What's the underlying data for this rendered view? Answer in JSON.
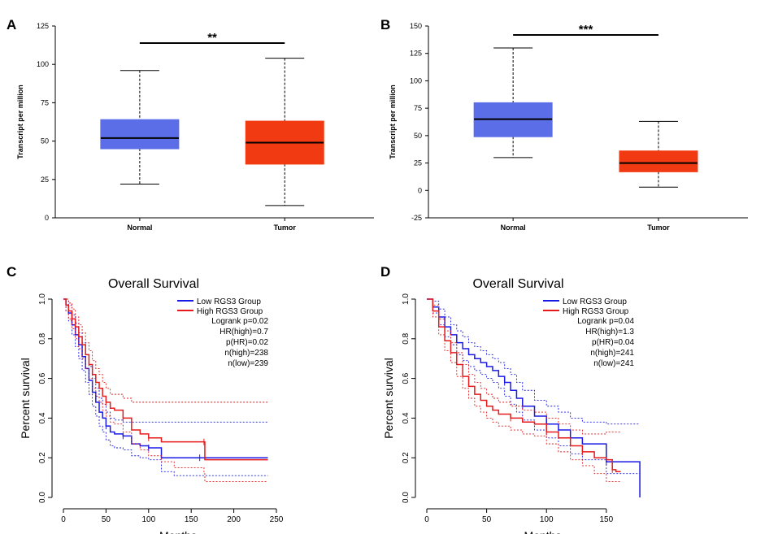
{
  "colors": {
    "normal_box": "#5b6ee8",
    "tumor_box": "#f23a12",
    "low_group": "#1a1ae6",
    "high_group": "#e61a1a"
  },
  "panels": {
    "A": "A",
    "B": "B",
    "C": "C",
    "D": "D"
  },
  "chart_data": [
    {
      "panel": "A",
      "type": "box",
      "title": "",
      "xlabel": "",
      "ylabel": "Transcript per million",
      "ylim": [
        0,
        125
      ],
      "yticks": [
        0,
        25,
        50,
        75,
        100,
        125
      ],
      "categories": [
        "Normal",
        "Tumor"
      ],
      "boxes": [
        {
          "name": "Normal",
          "min": 22,
          "q1": 45,
          "median": 52,
          "q3": 64,
          "max": 96
        },
        {
          "name": "Tumor",
          "min": 8,
          "q1": 35,
          "median": 49,
          "q3": 63,
          "max": 104
        }
      ],
      "significance": "**"
    },
    {
      "panel": "B",
      "type": "box",
      "title": "",
      "xlabel": "",
      "ylabel": "Transcript per million",
      "ylim": [
        -25,
        150
      ],
      "yticks": [
        -25,
        0,
        25,
        50,
        75,
        100,
        125,
        150
      ],
      "categories": [
        "Normal",
        "Tumor"
      ],
      "boxes": [
        {
          "name": "Normal",
          "min": 30,
          "q1": 49,
          "median": 65,
          "q3": 80,
          "max": 130
        },
        {
          "name": "Tumor",
          "min": 3,
          "q1": 17,
          "median": 25,
          "q3": 36,
          "max": 63
        }
      ],
      "significance": "***"
    },
    {
      "panel": "C",
      "type": "line",
      "title": "Overall Survival",
      "xlabel": "Months",
      "ylabel": "Percent survival",
      "xlim": [
        0,
        250
      ],
      "ylim": [
        0,
        1.0
      ],
      "xticks": [
        0,
        50,
        100,
        150,
        200,
        250
      ],
      "yticks": [
        0.0,
        0.2,
        0.4,
        0.6,
        0.8,
        1.0
      ],
      "legend": [
        "Low RGS3 Group",
        "High RGS3 Group"
      ],
      "stats": [
        "Logrank p=0.02",
        "HR(high)=0.7",
        "p(HR)=0.02",
        "n(high)=238",
        "n(low)=239"
      ],
      "series": [
        {
          "name": "Low RGS3 Group",
          "x": [
            0,
            3,
            6,
            10,
            14,
            18,
            22,
            26,
            30,
            34,
            38,
            42,
            46,
            50,
            55,
            60,
            70,
            80,
            90,
            100,
            115,
            130,
            160,
            200,
            240
          ],
          "y": [
            1.0,
            0.97,
            0.93,
            0.87,
            0.82,
            0.77,
            0.71,
            0.65,
            0.59,
            0.53,
            0.48,
            0.43,
            0.4,
            0.36,
            0.33,
            0.32,
            0.31,
            0.27,
            0.26,
            0.25,
            0.2,
            0.2,
            0.2,
            0.2,
            0.2
          ],
          "upper": [
            1.0,
            1.0,
            0.97,
            0.92,
            0.88,
            0.83,
            0.78,
            0.72,
            0.66,
            0.6,
            0.55,
            0.5,
            0.47,
            0.43,
            0.4,
            0.39,
            0.38,
            0.38,
            0.38,
            0.38,
            0.38,
            0.38,
            0.38,
            0.38,
            0.38
          ],
          "lower": [
            1.0,
            0.94,
            0.89,
            0.82,
            0.76,
            0.7,
            0.64,
            0.58,
            0.52,
            0.46,
            0.41,
            0.36,
            0.33,
            0.29,
            0.26,
            0.25,
            0.24,
            0.21,
            0.2,
            0.19,
            0.13,
            0.11,
            0.11,
            0.11,
            0.11
          ]
        },
        {
          "name": "High RGS3 Group",
          "x": [
            0,
            3,
            6,
            10,
            14,
            18,
            22,
            26,
            30,
            34,
            38,
            42,
            46,
            50,
            55,
            60,
            70,
            80,
            90,
            100,
            115,
            130,
            165,
            166,
            240
          ],
          "y": [
            1.0,
            0.97,
            0.94,
            0.9,
            0.86,
            0.81,
            0.77,
            0.72,
            0.67,
            0.62,
            0.58,
            0.55,
            0.51,
            0.48,
            0.45,
            0.44,
            0.4,
            0.34,
            0.32,
            0.3,
            0.28,
            0.28,
            0.28,
            0.19,
            0.19
          ],
          "upper": [
            1.0,
            1.0,
            0.98,
            0.95,
            0.91,
            0.87,
            0.83,
            0.78,
            0.74,
            0.69,
            0.65,
            0.62,
            0.58,
            0.55,
            0.52,
            0.52,
            0.5,
            0.48,
            0.48,
            0.48,
            0.48,
            0.48,
            0.48,
            0.48,
            0.48
          ],
          "lower": [
            1.0,
            0.94,
            0.9,
            0.85,
            0.8,
            0.75,
            0.7,
            0.65,
            0.6,
            0.55,
            0.51,
            0.48,
            0.44,
            0.41,
            0.38,
            0.37,
            0.33,
            0.27,
            0.24,
            0.21,
            0.18,
            0.15,
            0.12,
            0.08,
            0.08
          ]
        }
      ]
    },
    {
      "panel": "D",
      "type": "line",
      "title": "Overall Survival",
      "xlabel": "Months",
      "ylabel": "Percent survival",
      "xlim": [
        0,
        180
      ],
      "ylim": [
        0,
        1.0
      ],
      "xticks": [
        0,
        50,
        100,
        150
      ],
      "yticks": [
        0.0,
        0.2,
        0.4,
        0.6,
        0.8,
        1.0
      ],
      "legend": [
        "Low RGS3 Group",
        "High RGS3 Group"
      ],
      "stats": [
        "Logrank p=0.04",
        "HR(high)=1.3",
        "p(HR)=0.04",
        "n(high)=241",
        "n(low)=241"
      ],
      "series": [
        {
          "name": "Low RGS3 Group",
          "x": [
            0,
            5,
            10,
            15,
            20,
            25,
            30,
            35,
            40,
            45,
            50,
            55,
            60,
            65,
            70,
            75,
            80,
            90,
            100,
            110,
            120,
            130,
            150,
            177,
            178
          ],
          "y": [
            1.0,
            0.96,
            0.91,
            0.86,
            0.82,
            0.78,
            0.75,
            0.72,
            0.7,
            0.68,
            0.66,
            0.64,
            0.61,
            0.58,
            0.54,
            0.5,
            0.46,
            0.41,
            0.37,
            0.34,
            0.3,
            0.27,
            0.18,
            0.18,
            0.0
          ],
          "upper": [
            1.0,
            0.99,
            0.95,
            0.91,
            0.87,
            0.84,
            0.81,
            0.78,
            0.76,
            0.74,
            0.72,
            0.7,
            0.68,
            0.65,
            0.62,
            0.58,
            0.54,
            0.49,
            0.46,
            0.43,
            0.4,
            0.38,
            0.37,
            0.37,
            0.37
          ],
          "lower": [
            1.0,
            0.93,
            0.87,
            0.81,
            0.77,
            0.72,
            0.69,
            0.66,
            0.64,
            0.62,
            0.6,
            0.58,
            0.55,
            0.51,
            0.47,
            0.43,
            0.39,
            0.34,
            0.3,
            0.26,
            0.22,
            0.19,
            0.12,
            0.12,
            0.0
          ]
        },
        {
          "name": "High RGS3 Group",
          "x": [
            0,
            5,
            10,
            15,
            20,
            25,
            30,
            35,
            40,
            45,
            50,
            55,
            60,
            70,
            80,
            90,
            100,
            110,
            120,
            130,
            140,
            150,
            155,
            158,
            162
          ],
          "y": [
            1.0,
            0.94,
            0.86,
            0.79,
            0.73,
            0.67,
            0.61,
            0.56,
            0.52,
            0.49,
            0.46,
            0.44,
            0.42,
            0.4,
            0.38,
            0.37,
            0.33,
            0.3,
            0.26,
            0.23,
            0.2,
            0.19,
            0.14,
            0.13,
            0.13
          ],
          "upper": [
            1.0,
            0.97,
            0.9,
            0.84,
            0.78,
            0.73,
            0.67,
            0.62,
            0.58,
            0.55,
            0.52,
            0.5,
            0.48,
            0.46,
            0.44,
            0.43,
            0.4,
            0.37,
            0.34,
            0.32,
            0.32,
            0.33,
            0.33,
            0.33,
            0.33
          ],
          "lower": [
            1.0,
            0.91,
            0.82,
            0.74,
            0.68,
            0.61,
            0.55,
            0.5,
            0.46,
            0.43,
            0.4,
            0.38,
            0.36,
            0.34,
            0.32,
            0.31,
            0.27,
            0.23,
            0.19,
            0.16,
            0.12,
            0.08,
            0.08,
            0.08,
            0.08
          ]
        }
      ]
    }
  ]
}
